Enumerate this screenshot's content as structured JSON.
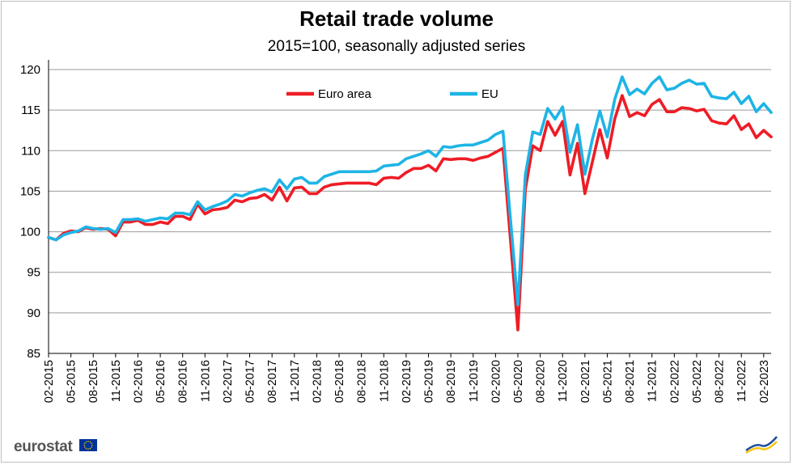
{
  "chart_data": {
    "type": "line",
    "title": "Retail trade volume",
    "subtitle": "2015=100, seasonally adjusted series",
    "xlabel": "",
    "ylabel": "",
    "ylim": [
      85,
      120
    ],
    "yticks": [
      85,
      90,
      95,
      100,
      105,
      110,
      115,
      120
    ],
    "xtick_labels": [
      "02-2015",
      "05-2015",
      "08-2015",
      "11-2015",
      "02-2016",
      "05-2016",
      "08-2016",
      "11-2016",
      "02-2017",
      "05-2017",
      "08-2017",
      "11-2017",
      "02-2018",
      "05-2018",
      "08-2018",
      "11-2018",
      "02-2019",
      "05-2019",
      "08-2019",
      "11-2019",
      "02-2020",
      "05-2020",
      "08-2020",
      "11-2020",
      "02-2021",
      "05-2021",
      "08-2021",
      "11-2021",
      "02-2022",
      "05-2022",
      "08-2022",
      "11-2022",
      "02-2023"
    ],
    "x_start": "02-2015",
    "x_end": "02-2023",
    "grid": "horizontal",
    "legend_position": "top-right",
    "series": [
      {
        "name": "Euro area",
        "color": "#ee1c25",
        "values": [
          99.3,
          99.0,
          99.8,
          100.1,
          100.0,
          100.5,
          100.3,
          100.4,
          100.3,
          99.5,
          101.2,
          101.2,
          101.4,
          100.9,
          100.9,
          101.2,
          101.0,
          101.9,
          101.9,
          101.5,
          103.4,
          102.2,
          102.7,
          102.8,
          103.0,
          103.9,
          103.7,
          104.1,
          104.2,
          104.6,
          103.9,
          105.5,
          103.8,
          105.4,
          105.5,
          104.7,
          104.7,
          105.5,
          105.8,
          105.9,
          106.0,
          106.0,
          106.0,
          106.0,
          105.8,
          106.6,
          106.7,
          106.6,
          107.3,
          107.8,
          107.8,
          108.2,
          107.5,
          109.0,
          108.9,
          109.0,
          109.0,
          108.8,
          109.1,
          109.3,
          109.8,
          110.3,
          99.1,
          87.9,
          105.2,
          110.6,
          110.0,
          113.6,
          111.9,
          113.6,
          107.0,
          110.9,
          104.7,
          108.6,
          112.6,
          109.1,
          113.9,
          116.8,
          114.2,
          114.7,
          114.3,
          115.7,
          116.3,
          114.8,
          114.8,
          115.3,
          115.2,
          114.9,
          115.1,
          113.7,
          113.4,
          113.3,
          114.3,
          112.6,
          113.3,
          111.6,
          112.5,
          111.7
        ]
      },
      {
        "name": "EU",
        "color": "#1eb4e6",
        "values": [
          99.3,
          99.0,
          99.6,
          99.9,
          100.1,
          100.6,
          100.4,
          100.3,
          100.4,
          99.9,
          101.5,
          101.5,
          101.6,
          101.3,
          101.5,
          101.7,
          101.6,
          102.3,
          102.3,
          102.1,
          103.7,
          102.7,
          103.1,
          103.4,
          103.8,
          104.6,
          104.4,
          104.8,
          105.1,
          105.3,
          104.9,
          106.4,
          105.3,
          106.5,
          106.7,
          106.0,
          106.0,
          106.8,
          107.1,
          107.4,
          107.4,
          107.4,
          107.4,
          107.4,
          107.5,
          108.1,
          108.2,
          108.3,
          109.0,
          109.3,
          109.6,
          110.0,
          109.3,
          110.5,
          110.4,
          110.6,
          110.7,
          110.7,
          111.0,
          111.3,
          112.0,
          112.4,
          101.6,
          91.0,
          107.0,
          112.3,
          112.0,
          115.2,
          113.9,
          115.4,
          109.8,
          113.2,
          107.1,
          111.4,
          114.9,
          111.7,
          116.3,
          119.1,
          116.9,
          117.6,
          117.0,
          118.3,
          119.1,
          117.5,
          117.7,
          118.3,
          118.7,
          118.2,
          118.3,
          116.7,
          116.5,
          116.4,
          117.2,
          115.8,
          116.7,
          114.8,
          115.8,
          114.7
        ]
      }
    ]
  },
  "branding": {
    "logo_text": "eurostat",
    "eu_flag_color": "#003399",
    "corner_mark_colors": [
      "#1f4e9c",
      "#f6c510"
    ]
  }
}
